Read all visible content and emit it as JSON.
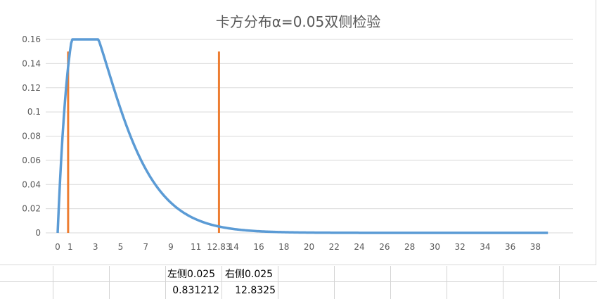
{
  "chart_data": {
    "type": "line",
    "title": "卡方分布α=0.05双侧检验",
    "xlabel": "",
    "ylabel": "",
    "ylim": [
      0,
      0.16
    ],
    "yticks": [
      "0",
      "0.02",
      "0.04",
      "0.06",
      "0.08",
      "0.1",
      "0.12",
      "0.14",
      "0.16"
    ],
    "xticks": [
      "0",
      "1",
      "3",
      "5",
      "7",
      "9",
      "11",
      "12.83",
      "14",
      "16",
      "18",
      "20",
      "22",
      "24",
      "26",
      "28",
      "30",
      "32",
      "34",
      "36",
      "38"
    ],
    "grid": true,
    "curve": {
      "name": "",
      "color": "#5b9bd5",
      "df": 4,
      "x_start": 0,
      "x_end": 39,
      "peak_x": 2,
      "peak_y": 0.154
    },
    "critical_lines": [
      {
        "x": 0.831212,
        "y_top": 0.15,
        "color": "#ed7d31"
      },
      {
        "x": 12.8325,
        "y_top": 0.15,
        "color": "#ed7d31"
      }
    ]
  },
  "sheet": {
    "left_label": "左侧0.025",
    "right_label": "右侧0.025",
    "left_value": "0.831212",
    "right_value": "12.8325"
  }
}
